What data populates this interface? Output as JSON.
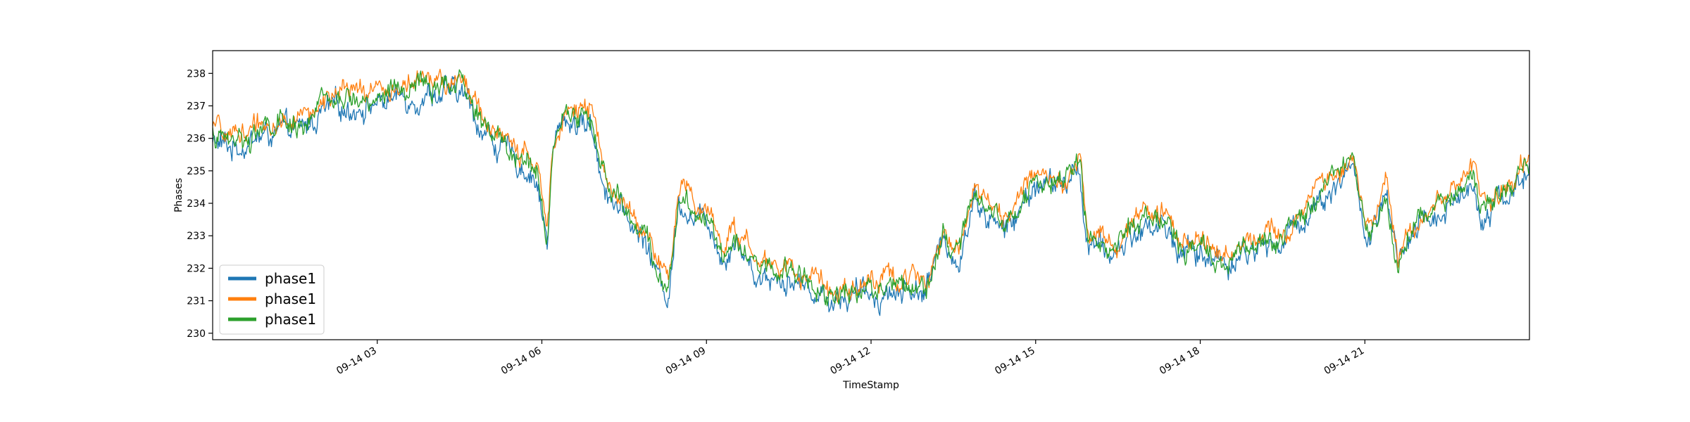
{
  "chart_data": {
    "type": "line",
    "title": "",
    "xlabel": "TimeStamp",
    "ylabel": "Phases",
    "xlim": [
      0,
      24
    ],
    "ylim": [
      229.8,
      238.7
    ],
    "x_unit": "hours since 09-14 00:00",
    "x_ticks": [
      {
        "value": 3,
        "label": "09-14 03"
      },
      {
        "value": 6,
        "label": "09-14 06"
      },
      {
        "value": 9,
        "label": "09-14 09"
      },
      {
        "value": 12,
        "label": "09-14 12"
      },
      {
        "value": 15,
        "label": "09-14 15"
      },
      {
        "value": 18,
        "label": "09-14 18"
      },
      {
        "value": 21,
        "label": "09-14 21"
      }
    ],
    "y_ticks": [
      230,
      231,
      232,
      233,
      234,
      235,
      236,
      237,
      238
    ],
    "grid": false,
    "legend_position": "lower-left",
    "series": [
      {
        "name": "phase1",
        "color": "#1f77b4",
        "offset": -0.2,
        "noise": 0.42
      },
      {
        "name": "phase1",
        "color": "#ff7f0e",
        "offset": 0.18,
        "noise": 0.36
      },
      {
        "name": "phase1",
        "color": "#2ca02c",
        "offset": 0.0,
        "noise": 0.38
      }
    ],
    "base_trend": {
      "x": [
        0,
        0.3,
        1.0,
        1.6,
        2.0,
        2.6,
        3.0,
        3.6,
        4.0,
        4.6,
        4.9,
        5.3,
        5.9,
        6.1,
        6.2,
        6.4,
        6.9,
        7.1,
        7.4,
        7.9,
        8.1,
        8.3,
        8.5,
        8.9,
        9.1,
        9.3,
        9.5,
        9.9,
        10.5,
        11.2,
        11.5,
        12.0,
        12.5,
        13.0,
        13.3,
        13.6,
        13.9,
        14.1,
        14.4,
        14.6,
        15.0,
        15.5,
        15.8,
        15.95,
        16.4,
        16.8,
        17.3,
        17.6,
        18.0,
        18.5,
        19.0,
        19.5,
        20.0,
        20.4,
        20.8,
        21.0,
        21.1,
        21.4,
        21.6,
        21.9,
        22.4,
        22.8,
        23.0,
        23.1,
        23.6,
        24.0
      ],
      "y": [
        236.1,
        235.9,
        236.3,
        236.4,
        237.0,
        237.2,
        237.3,
        237.5,
        237.6,
        237.5,
        236.5,
        235.8,
        235.0,
        233.0,
        235.8,
        236.8,
        236.6,
        235.0,
        234.0,
        233.0,
        232.0,
        231.3,
        234.3,
        233.7,
        233.6,
        232.4,
        233.2,
        232.0,
        231.9,
        231.3,
        231.3,
        231.4,
        231.5,
        231.6,
        232.9,
        232.5,
        234.5,
        233.8,
        233.4,
        233.6,
        234.8,
        234.7,
        235.3,
        232.9,
        232.6,
        233.3,
        233.6,
        232.8,
        232.6,
        232.4,
        232.8,
        233.0,
        234.0,
        234.7,
        235.3,
        233.3,
        233.0,
        234.4,
        232.2,
        233.2,
        234.0,
        234.5,
        234.9,
        233.9,
        234.5,
        235.1
      ]
    }
  }
}
